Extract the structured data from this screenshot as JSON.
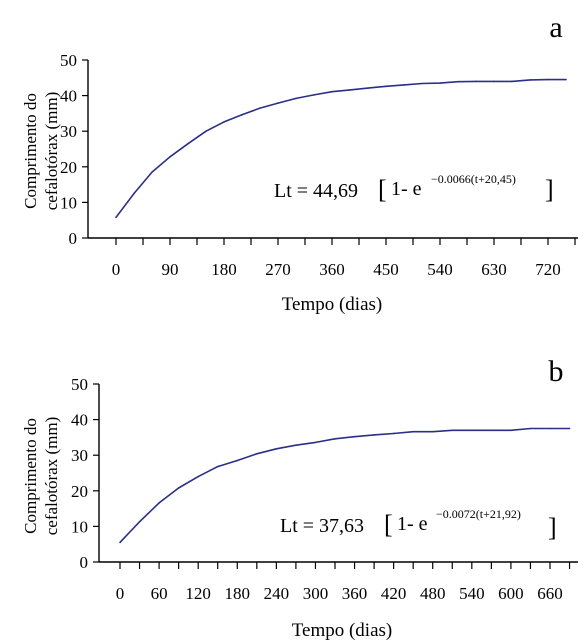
{
  "chart_data": [
    {
      "type": "line",
      "panel_label": "a",
      "xlabel": "Tempo (dias)",
      "ylabel_lines": [
        "Comprimento do",
        "cefalotórax (mm)"
      ],
      "x_ticks": [
        0,
        90,
        180,
        270,
        360,
        450,
        540,
        630,
        720
      ],
      "y_ticks": [
        0,
        10,
        20,
        30,
        40,
        50
      ],
      "xlim": [
        0,
        780
      ],
      "ylim": [
        0,
        50
      ],
      "equation": {
        "main": "Lt = 44,69",
        "bracket_open": "[",
        "inner": "1- e",
        "exponent": "−0.0066(t+20,45)",
        "bracket_close": "]"
      },
      "color": "#2b2f86",
      "series": [
        {
          "x": [
            0,
            30,
            60,
            90,
            120,
            150,
            180,
            210,
            240,
            270,
            300,
            330,
            360,
            390,
            420,
            450,
            480,
            510,
            540,
            570,
            600,
            630,
            660,
            690,
            720,
            750
          ],
          "y": [
            5.8,
            12.5,
            18.5,
            22.8,
            26.5,
            30.0,
            32.6,
            34.6,
            36.5,
            37.9,
            39.2,
            40.2,
            41.1,
            41.6,
            42.1,
            42.6,
            43.0,
            43.4,
            43.5,
            43.9,
            44.0,
            44.0,
            44.0,
            44.4,
            44.5,
            44.5
          ]
        }
      ]
    },
    {
      "type": "line",
      "panel_label": "b",
      "xlabel": "Tempo (dias)",
      "ylabel_lines": [
        "Comprimento do",
        "cefalotórax (mm)"
      ],
      "x_ticks": [
        0,
        60,
        120,
        180,
        240,
        300,
        360,
        420,
        480,
        540,
        600,
        660
      ],
      "y_ticks": [
        0,
        10,
        20,
        30,
        40,
        50
      ],
      "xlim": [
        0,
        690
      ],
      "ylim": [
        0,
        50
      ],
      "equation": {
        "main": "Lt = 37,63",
        "bracket_open": "[",
        "inner": "1- e",
        "exponent": "−0.0072(t+21,92)",
        "bracket_close": "]"
      },
      "color": "#2b2f86",
      "series": [
        {
          "x": [
            0,
            30,
            60,
            90,
            120,
            150,
            180,
            210,
            240,
            270,
            300,
            330,
            360,
            390,
            420,
            450,
            480,
            510,
            540,
            570,
            600,
            630,
            660,
            690
          ],
          "y": [
            5.5,
            11.3,
            16.6,
            20.8,
            24.0,
            26.8,
            28.5,
            30.4,
            31.8,
            32.8,
            33.6,
            34.6,
            35.2,
            35.7,
            36.1,
            36.6,
            36.6,
            37.0,
            37.0,
            37.0,
            37.0,
            37.5,
            37.5,
            37.5
          ]
        }
      ]
    }
  ]
}
